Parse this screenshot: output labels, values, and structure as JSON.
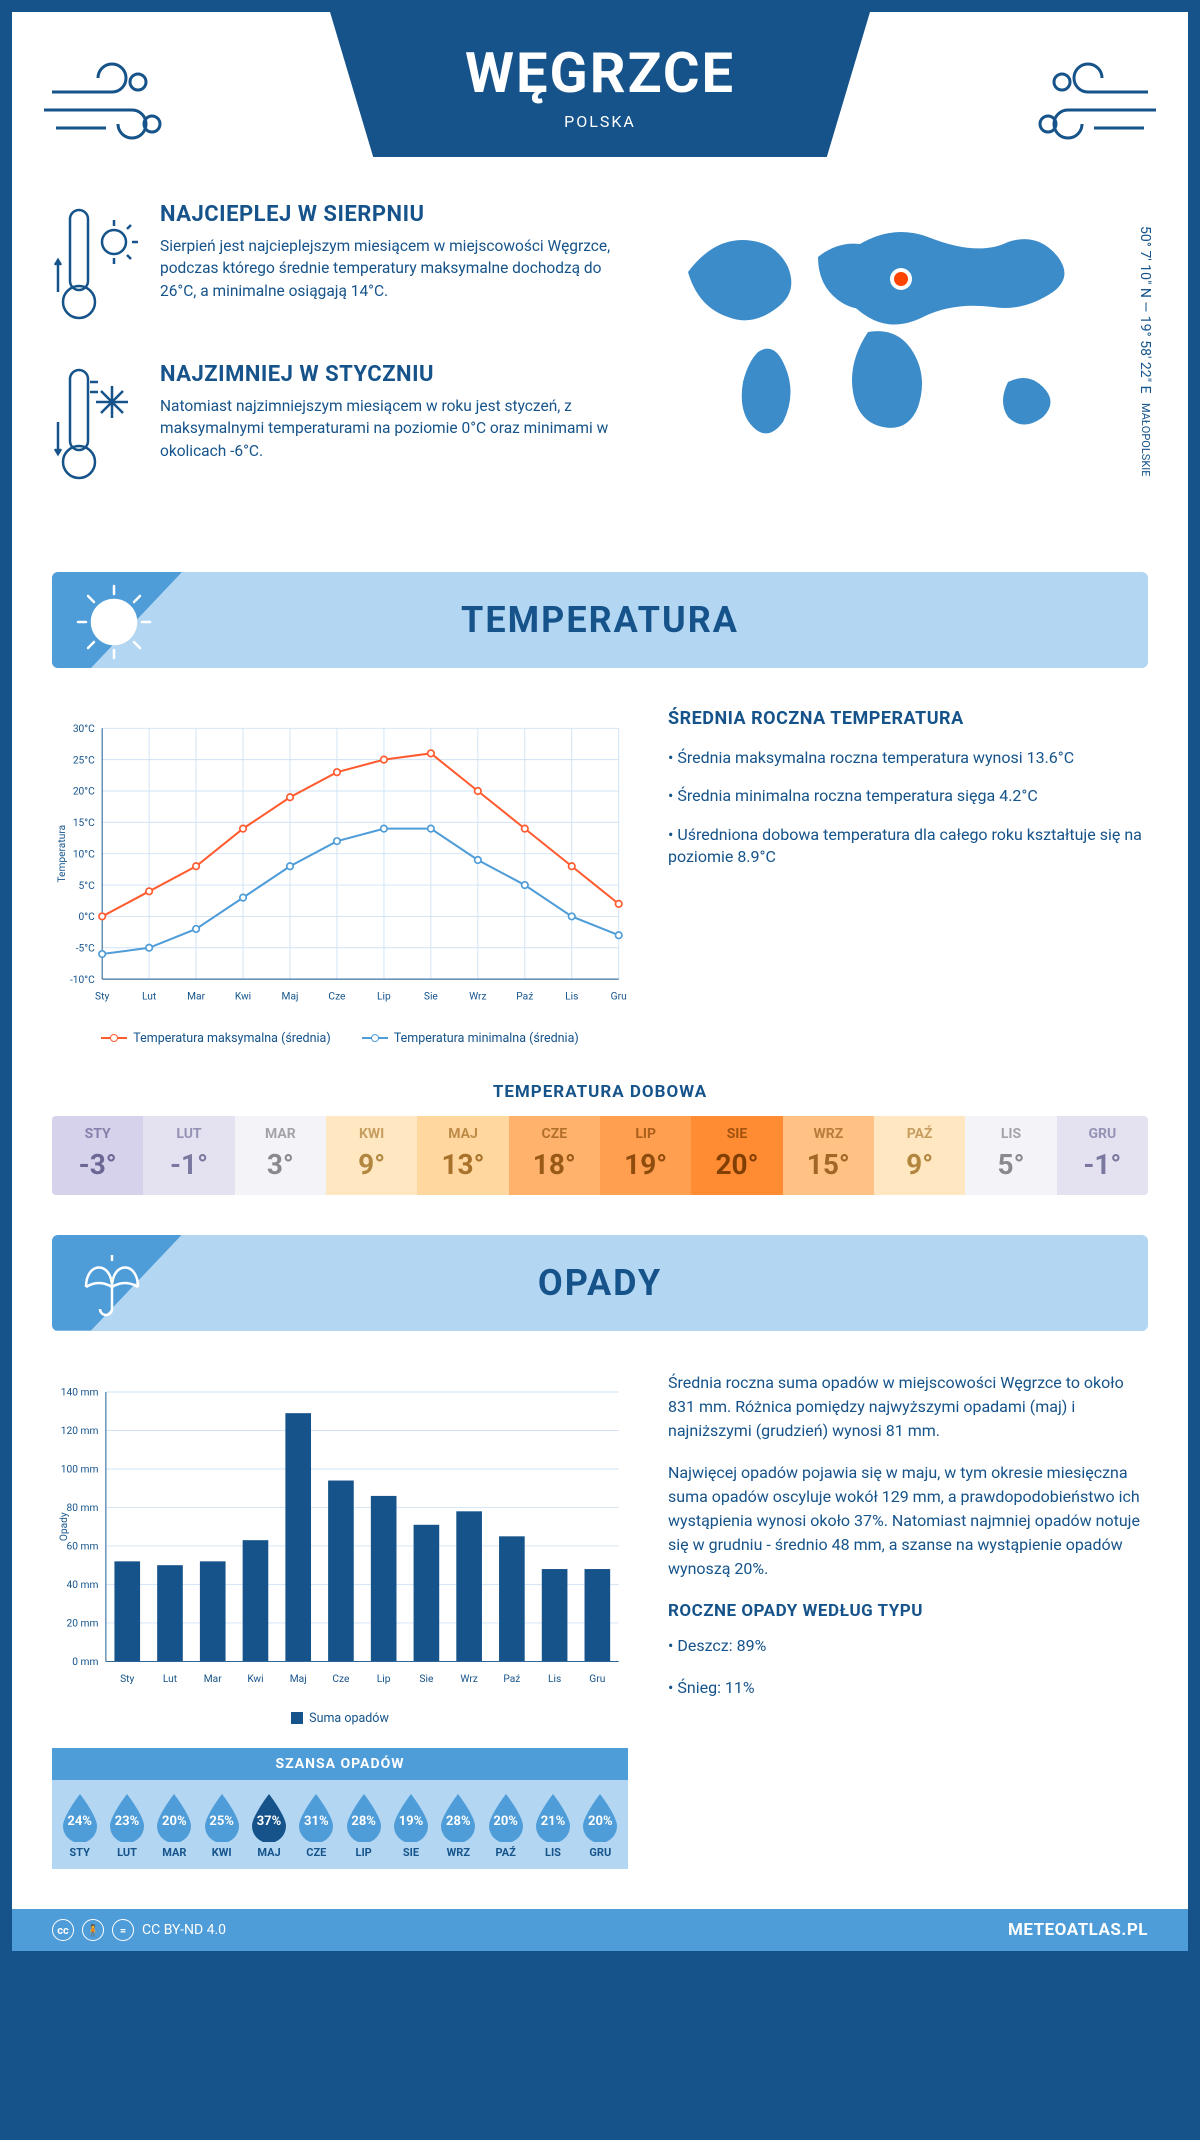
{
  "header": {
    "title": "WĘGRZCE",
    "subtitle": "POLSKA"
  },
  "location": {
    "coords": "50° 7' 10\" N — 19° 58' 22\" E",
    "region": "MAŁOPOLSKIE",
    "marker_color": "#ff4500"
  },
  "colors": {
    "brand": "#15538a",
    "banner_bg": "#b3d7f2",
    "banner_accent": "#4e9cd8",
    "map_fill": "#3b8cc9"
  },
  "info_hot": {
    "title": "NAJCIEPLEJ W SIERPNIU",
    "text": "Sierpień jest najcieplejszym miesiącem w miejscowości Węgrzce, podczas którego średnie temperatury maksymalne dochodzą do 26°C, a minimalne osiągają 14°C."
  },
  "info_cold": {
    "title": "NAJZIMNIEJ W STYCZNIU",
    "text": "Natomiast najzimniejszym miesiącem w roku jest styczeń, z maksymalnymi temperaturami na poziomie 0°C oraz minimami w okolicach -6°C."
  },
  "section_temp_title": "TEMPERATURA",
  "section_precip_title": "OPADY",
  "temp_chart": {
    "type": "line",
    "months": [
      "Sty",
      "Lut",
      "Mar",
      "Kwi",
      "Maj",
      "Cze",
      "Lip",
      "Sie",
      "Wrz",
      "Paź",
      "Lis",
      "Gru"
    ],
    "max": [
      0,
      4,
      8,
      14,
      19,
      23,
      25,
      26,
      20,
      14,
      8,
      2
    ],
    "min": [
      -6,
      -5,
      -2,
      3,
      8,
      12,
      14,
      14,
      9,
      5,
      0,
      -3
    ],
    "ylim": [
      -10,
      30
    ],
    "ytick_step": 5,
    "y_unit": "°C",
    "ylabel": "Temperatura",
    "grid_color": "#cfe3f5",
    "axis_color": "#15538a",
    "line_max_color": "#ff5b2e",
    "line_min_color": "#4e9cd8",
    "marker_fill": "#ffffff",
    "legend_max": "Temperatura maksymalna (średnia)",
    "legend_min": "Temperatura minimalna (średnia)"
  },
  "temp_side": {
    "title": "ŚREDNIA ROCZNA TEMPERATURA",
    "lines": [
      "• Średnia maksymalna roczna temperatura wynosi 13.6°C",
      "• Średnia minimalna roczna temperatura sięga 4.2°C",
      "• Uśredniona dobowa temperatura dla całego roku kształtuje się na poziomie 8.9°C"
    ]
  },
  "daily": {
    "title": "TEMPERATURA DOBOWA",
    "months": [
      "STY",
      "LUT",
      "MAR",
      "KWI",
      "MAJ",
      "CZE",
      "LIP",
      "SIE",
      "WRZ",
      "PAŹ",
      "LIS",
      "GRU"
    ],
    "values": [
      "-3°",
      "-1°",
      "3°",
      "9°",
      "13°",
      "18°",
      "19°",
      "20°",
      "15°",
      "9°",
      "5°",
      "-1°"
    ],
    "bg_colors": [
      "#d6d2ec",
      "#e4e2f1",
      "#f4f3f7",
      "#ffe7c2",
      "#ffd79f",
      "#ffb26b",
      "#ff9f4f",
      "#ff8c33",
      "#ffc184",
      "#ffe7c2",
      "#f4f3f7",
      "#e4e2f1"
    ],
    "text_colors": [
      "#6b6795",
      "#7b78a0",
      "#8a8a8e",
      "#b3863f",
      "#a8722a",
      "#9a5a17",
      "#8f4c0c",
      "#823f03",
      "#a16726",
      "#b3863f",
      "#8a8a8e",
      "#7b78a0"
    ]
  },
  "precip_chart": {
    "type": "bar",
    "months": [
      "Sty",
      "Lut",
      "Mar",
      "Kwi",
      "Maj",
      "Cze",
      "Lip",
      "Sie",
      "Wrz",
      "Paź",
      "Lis",
      "Gru"
    ],
    "values": [
      52,
      50,
      52,
      63,
      129,
      94,
      86,
      71,
      78,
      65,
      48,
      48
    ],
    "ylim": [
      0,
      140
    ],
    "ytick_step": 20,
    "y_unit": " mm",
    "ylabel": "Opady",
    "bar_color": "#15538a",
    "grid_color": "#cfe3f5",
    "legend": "Suma opadów"
  },
  "precip_side": {
    "paragraphs": [
      "Średnia roczna suma opadów w miejscowości Węgrzce to około 831 mm. Różnica pomiędzy najwyższymi opadami (maj) i najniższymi (grudzień) wynosi 81 mm.",
      "Najwięcej opadów pojawia się w maju, w tym okresie miesięczna suma opadów oscyluje wokół 129 mm, a prawdopodobieństwo ich wystąpienia wynosi około 37%. Natomiast najmniej opadów notuje się w grudniu - średnio 48 mm, a szanse na wystąpienie opadów wynoszą 20%."
    ],
    "type_title": "ROCZNE OPADY WEDŁUG TYPU",
    "type_lines": [
      "• Deszcz: 89%",
      "• Śnieg: 11%"
    ]
  },
  "chance": {
    "title": "SZANSA OPADÓW",
    "months": [
      "STY",
      "LUT",
      "MAR",
      "KWI",
      "MAJ",
      "CZE",
      "LIP",
      "SIE",
      "WRZ",
      "PAŹ",
      "LIS",
      "GRU"
    ],
    "values": [
      24,
      23,
      20,
      25,
      37,
      31,
      28,
      19,
      28,
      20,
      21,
      20
    ],
    "drop_fill": "#4e9cd8",
    "drop_fill_dark": "#15538a"
  },
  "footer": {
    "license": "CC BY-ND 4.0",
    "site": "METEOATLAS.PL"
  }
}
